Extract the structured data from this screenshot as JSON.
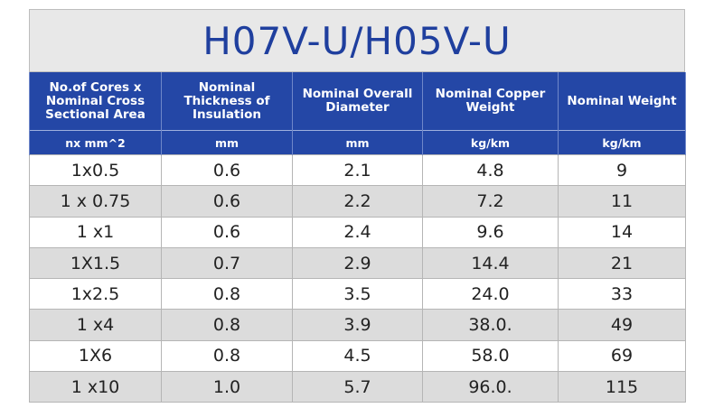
{
  "header": {
    "title": "H07V-U/H05V-U"
  },
  "table": {
    "columns": [
      "No.of Cores x Nominal Cross Sectional Area",
      "Nominal Thickness of Insulation",
      "Nominal Overall Diameter",
      "Nominal Copper Weight",
      "Nominal Weight"
    ],
    "units": [
      "nx mm^2",
      "mm",
      "mm",
      "kg/km",
      "kg/km"
    ],
    "rows": [
      [
        "1x0.5",
        "0.6",
        "2.1",
        "4.8",
        "9"
      ],
      [
        "1 x 0.75",
        "0.6",
        "2.2",
        "7.2",
        "11"
      ],
      [
        "1 x1",
        "0.6",
        "2.4",
        "9.6",
        "14"
      ],
      [
        "1X1.5",
        "0.7",
        "2.9",
        "14.4",
        "21"
      ],
      [
        "1x2.5",
        "0.8",
        "3.5",
        "24.0",
        "33"
      ],
      [
        "1 x4",
        "0.8",
        "3.9",
        "38.0.",
        "49"
      ],
      [
        "1X6",
        "0.8",
        "4.5",
        "58.0",
        "69"
      ],
      [
        "1 x10",
        "1.0",
        "5.7",
        "96.0.",
        "115"
      ]
    ]
  }
}
